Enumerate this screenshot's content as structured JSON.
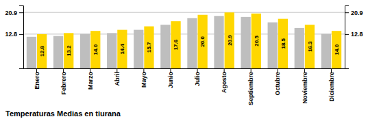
{
  "chart_data": {
    "type": "bar",
    "title": "Temperaturas Medias en tiurana",
    "categories": [
      "Enero",
      "Febrero",
      "Marzo",
      "Abril",
      "Mayo",
      "Junio",
      "Julio",
      "Agosto",
      "Septiembre",
      "Octubre",
      "Noviembre",
      "Diciembre"
    ],
    "series": [
      {
        "color": "#BEBEBE",
        "values": [
          11.8,
          12.1,
          12.9,
          13.2,
          14.4,
          16.3,
          18.8,
          19.6,
          19.2,
          17.2,
          15.1,
          12.9
        ]
      },
      {
        "color": "#FFD700",
        "values": [
          12.8,
          13.2,
          14.0,
          14.4,
          15.7,
          17.6,
          20.0,
          20.9,
          20.5,
          18.5,
          16.3,
          14.0
        ],
        "value_labels": [
          "12.8",
          "13.2",
          "14.0",
          "14.4",
          "15.7",
          "17.6",
          "20.0",
          "20.9",
          "20.5",
          "18.5",
          "16.3",
          "14.0"
        ],
        "data_labels": true
      }
    ],
    "ylim": [
      0,
      23.5
    ],
    "yticks": [
      12.8,
      20.9
    ],
    "y2lim": [
      0,
      23.5
    ],
    "y2ticks": [
      12.8,
      20.9
    ],
    "grid": true
  }
}
